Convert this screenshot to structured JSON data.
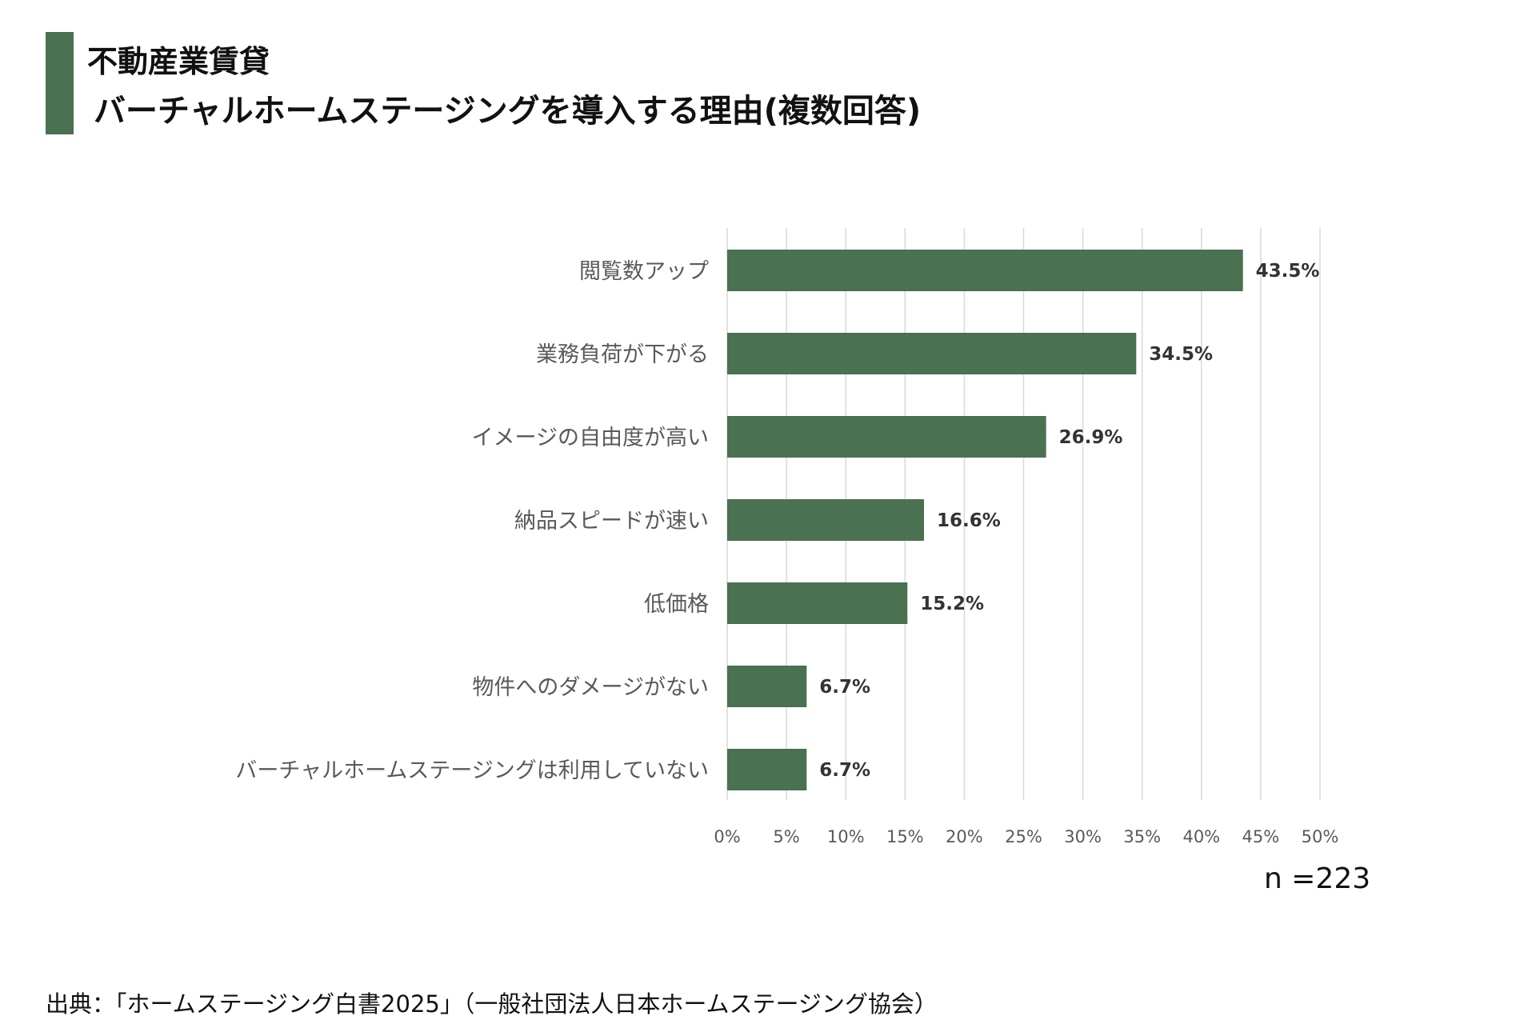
{
  "title": {
    "line1": "不動産業賃貸",
    "line2": "バーチャルホームステージングを導入する理由(複数回答)"
  },
  "colors": {
    "accent": "#4a7150",
    "grid": "#d9d9d9",
    "label": "#595959",
    "value": "#333333"
  },
  "chart_data": {
    "type": "bar",
    "orientation": "horizontal",
    "categories": [
      "閲覧数アップ",
      "業務負荷が下がる",
      "イメージの自由度が高い",
      "納品スピードが速い",
      "低価格",
      "物件へのダメージがない",
      "バーチャルホームステージングは利用していない"
    ],
    "values": [
      43.5,
      34.5,
      26.9,
      16.6,
      15.2,
      6.7,
      6.7
    ],
    "value_labels": [
      "43.5%",
      "34.5%",
      "26.9%",
      "16.6%",
      "15.2%",
      "6.7%",
      "6.7%"
    ],
    "xlim": [
      0,
      50
    ],
    "ticks": [
      0,
      5,
      10,
      15,
      20,
      25,
      30,
      35,
      40,
      45,
      50
    ],
    "tick_labels": [
      "0%",
      "5%",
      "10%",
      "15%",
      "20%",
      "25%",
      "30%",
      "35%",
      "40%",
      "45%",
      "50%"
    ],
    "grid": true,
    "legend": "none"
  },
  "sample_note": "n =223",
  "source": "出典：「ホームステージング白書2025」（一般社団法人日本ホームステージング協会）"
}
